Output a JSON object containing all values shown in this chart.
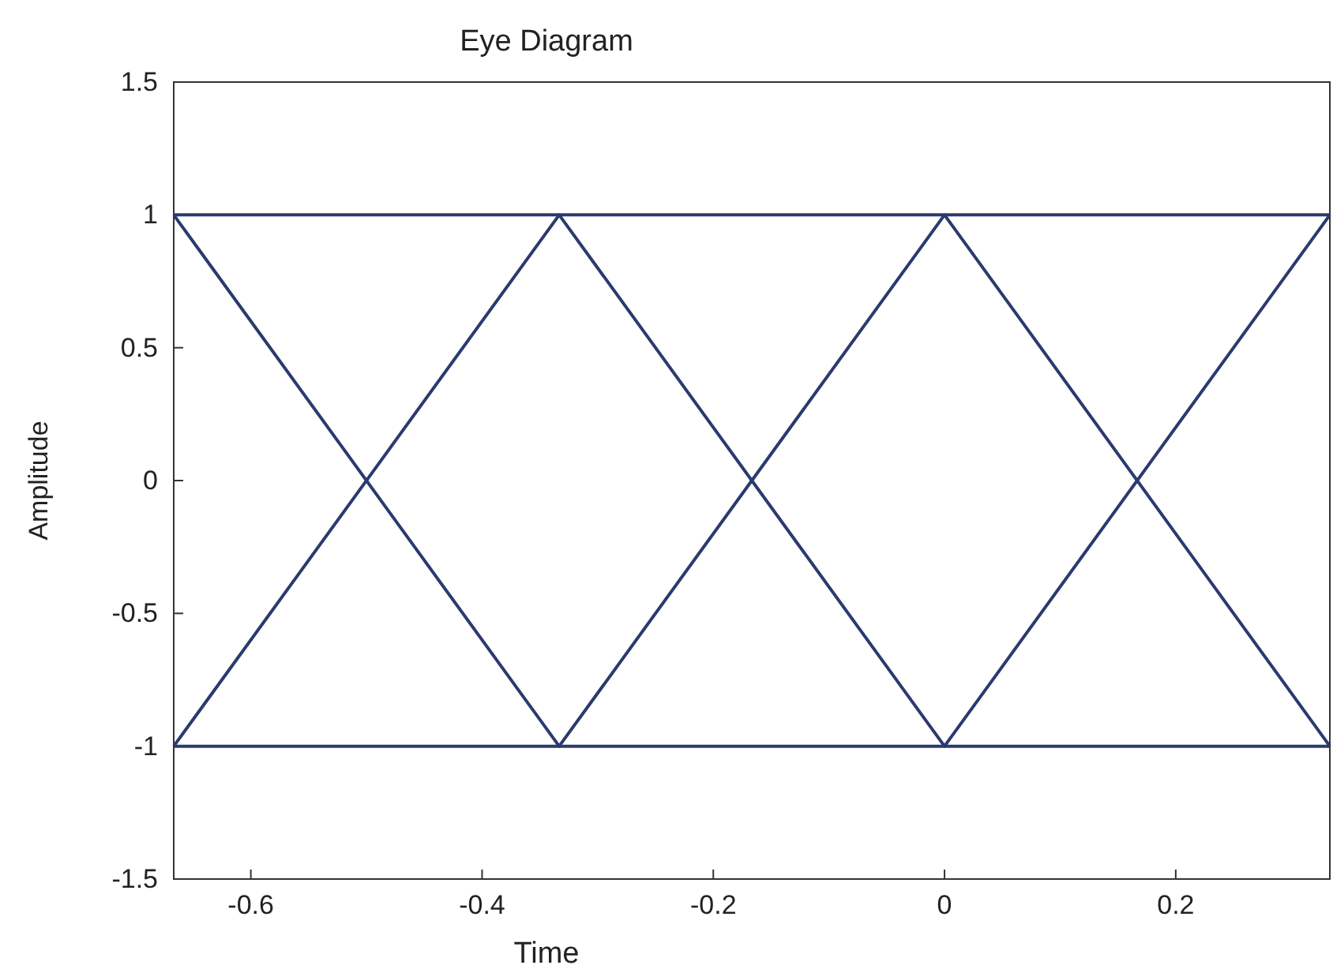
{
  "chart_data": {
    "type": "line",
    "title": "Eye Diagram",
    "xlabel": "Time",
    "ylabel": "Amplitude",
    "xlim": [
      -0.6667,
      0.3333
    ],
    "ylim": [
      -1.5,
      1.5
    ],
    "xticks": [
      -0.6,
      -0.4,
      -0.2,
      0,
      0.2
    ],
    "yticks": [
      -1.5,
      -1,
      -0.5,
      0,
      0.5,
      1,
      1.5
    ],
    "marker": "none",
    "line_style": "solid",
    "series": [
      {
        "color": "#2b3a6e",
        "x": [
          -0.6667,
          0.3333
        ],
        "values": [
          1,
          1
        ]
      },
      {
        "color": "#2b3a6e",
        "x": [
          -0.6667,
          0.3333
        ],
        "values": [
          -1,
          -1
        ]
      },
      {
        "color": "#2b3a6e",
        "x": [
          -0.6667,
          -0.3333,
          0,
          0.3333
        ],
        "values": [
          1,
          -1,
          1,
          -1
        ]
      },
      {
        "color": "#2b3a6e",
        "x": [
          -0.6667,
          -0.3333,
          0,
          0.3333
        ],
        "values": [
          -1,
          1,
          -1,
          1
        ]
      }
    ]
  }
}
